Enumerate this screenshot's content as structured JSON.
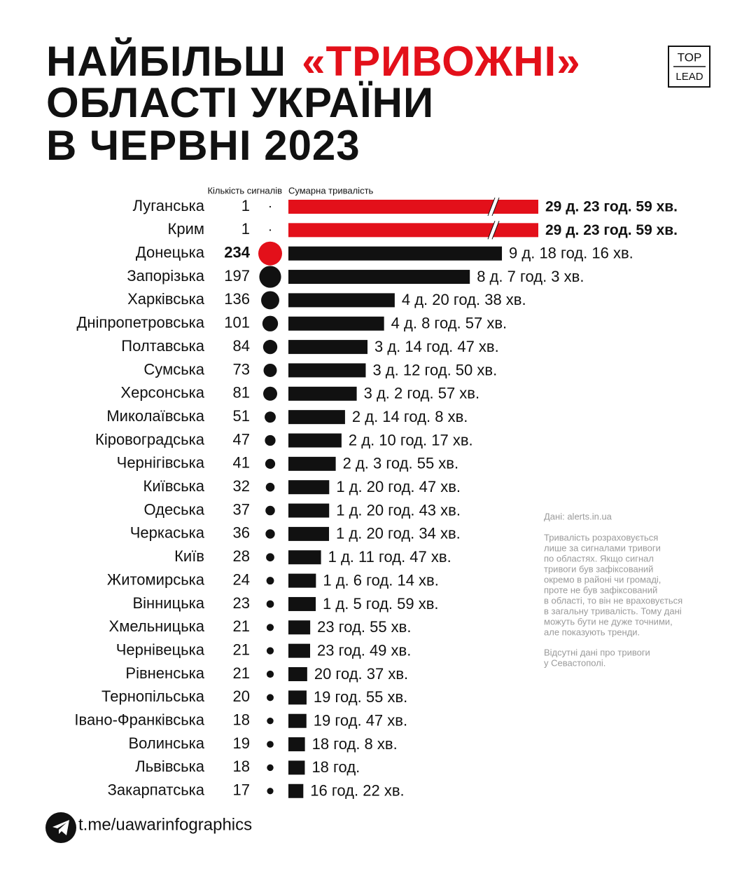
{
  "chart_data": {
    "type": "bar",
    "orientation": "horizontal",
    "title_lines": [
      "НАЙБІЛЬШ",
      "ОБЛАСТІ УКРАЇНИ",
      "В ЧЕРВНІ 2023"
    ],
    "title_highlight": "«ТРИВОЖНІ»",
    "highlight_color": "#e3101a",
    "logo": [
      "TOP",
      "LEAD"
    ],
    "count_header": "Кількість сигналів",
    "value_header": "Сумарна тривалість",
    "categories": [
      "Луганська",
      "Крим",
      "Донецька",
      "Запорізька",
      "Харківська",
      "Дніпропетровська",
      "Полтавська",
      "Сумська",
      "Херсонська",
      "Миколаївська",
      "Кіровоградська",
      "Чернігівська",
      "Київська",
      "Одеська",
      "Черкаська",
      "Київ",
      "Житомирська",
      "Вінницька",
      "Хмельницька",
      "Чернівецька",
      "Рівненська",
      "Тернопільська",
      "Івано-Франківська",
      "Волинська",
      "Львівська",
      "Закарпатська"
    ],
    "counts": [
      1,
      1,
      234,
      197,
      136,
      101,
      84,
      73,
      81,
      51,
      47,
      41,
      32,
      37,
      36,
      28,
      24,
      23,
      21,
      21,
      21,
      20,
      18,
      19,
      18,
      17
    ],
    "values": [
      43199,
      43199,
      14056,
      11943,
      6998,
      6297,
      5207,
      5090,
      4497,
      3728,
      3497,
      3115,
      2687,
      2683,
      2674,
      2147,
      1814,
      1799,
      1435,
      1429,
      1237,
      1195,
      1187,
      1088,
      1080,
      982
    ],
    "value_labels": [
      "29 д. 23 год. 59 хв.",
      "29 д. 23 год. 59 хв.",
      "9 д. 18 год. 16 хв.",
      "8 д. 7 год. 3 хв.",
      "4 д. 20 год. 38 хв.",
      "4 д. 8 год. 57 хв.",
      "3 д. 14 год. 47 хв.",
      "3 д. 12 год. 50 хв.",
      "3 д. 2 год. 57 хв.",
      "2 д. 14 год. 8 хв.",
      "2 д. 10 год. 17 хв.",
      "2 д. 3 год. 55 хв.",
      "1 д. 20 год. 47 хв.",
      "1 д. 20 год. 43 хв.",
      "1 д. 20 год. 34 хв.",
      "1 д. 11 год. 47 хв.",
      "1 д. 6 год. 14 хв.",
      "1 д. 5 год. 59 хв.",
      "23 год. 55 хв.",
      "23 год. 49 хв.",
      "20 год. 37 хв.",
      "19 год. 55 хв.",
      "19 год. 47 хв.",
      "18 год. 8 хв.",
      "18 год.",
      "16 год. 22 хв."
    ],
    "colors": [
      "#e3101a",
      "#e3101a",
      "#111111",
      "#111111",
      "#111111",
      "#111111",
      "#111111",
      "#111111",
      "#111111",
      "#111111",
      "#111111",
      "#111111",
      "#111111",
      "#111111",
      "#111111",
      "#111111",
      "#111111",
      "#111111",
      "#111111",
      "#111111",
      "#111111",
      "#111111",
      "#111111",
      "#111111",
      "#111111",
      "#111111"
    ],
    "count_colors": [
      "#111111",
      "#111111",
      "#e3101a",
      "#111111",
      "#111111",
      "#111111",
      "#111111",
      "#111111",
      "#111111",
      "#111111",
      "#111111",
      "#111111",
      "#111111",
      "#111111",
      "#111111",
      "#111111",
      "#111111",
      "#111111",
      "#111111",
      "#111111",
      "#111111",
      "#111111",
      "#111111",
      "#111111",
      "#111111",
      "#111111"
    ],
    "xlim": [
      0,
      16450
    ],
    "axis_break": true,
    "source": "Дані: alerts.in.ua",
    "note_lines": [
      "Тривалість розраховується",
      "лише за сигналами тривоги",
      "по областях. Якщо сигнал",
      "тривоги був зафіксований",
      "окремо в районі чи громаді,",
      "проте не був зафіксований",
      "в області, то він не враховується",
      "в загальну тривалість. Тому дані",
      "можуть бути не дуже точними,",
      "але показують тренди."
    ],
    "missing_note_lines": [
      "Відсутні дані про тривоги",
      "у Севастополі."
    ],
    "footer": "t.me/uawarinfographics"
  }
}
